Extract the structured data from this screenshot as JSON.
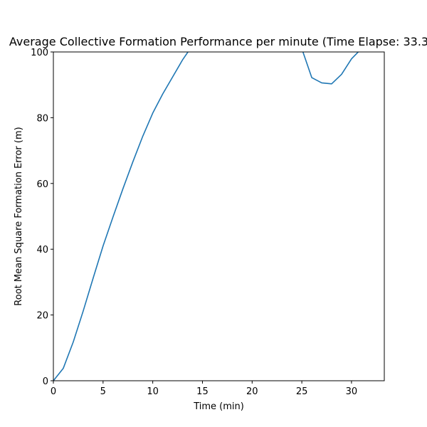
{
  "chart_data": {
    "type": "line",
    "title": "Average Collective Formation Performance per minute (Time Elapse: 33.3",
    "xlabel": "Time (min)",
    "ylabel": "Root Mean Square Formation Error (m)",
    "xlim": [
      0,
      33.3
    ],
    "ylim": [
      0,
      100
    ],
    "xticks": [
      0,
      5,
      10,
      15,
      20,
      25,
      30
    ],
    "yticks": [
      0,
      20,
      40,
      60,
      80,
      100
    ],
    "grid": false,
    "series": [
      {
        "color": "#1f77b4",
        "x": [
          0,
          1,
          2,
          3,
          4,
          5,
          6,
          7,
          8,
          9,
          10,
          11,
          12,
          13,
          14,
          15,
          16,
          17,
          18,
          19,
          20,
          21,
          22,
          23,
          24,
          25,
          26,
          27,
          28,
          29,
          30,
          31,
          32,
          33
        ],
        "y": [
          0,
          3.8,
          11.8,
          21.2,
          31.2,
          41.0,
          49.8,
          58.4,
          66.6,
          74.4,
          81.4,
          87.2,
          92.4,
          97.6,
          102,
          105,
          107,
          108,
          108,
          108,
          108,
          108,
          108,
          107,
          105,
          101,
          92.2,
          90.6,
          90.3,
          93.2,
          97.9,
          101,
          104,
          106
        ]
      }
    ]
  }
}
